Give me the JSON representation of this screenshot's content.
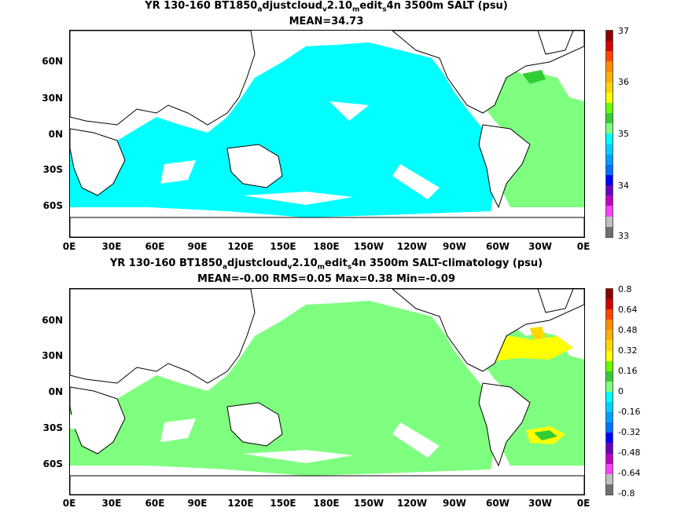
{
  "maps": [
    {
      "title_parts": [
        "YR 130-160 BT1850",
        "a",
        "djustcloud",
        "v",
        "2.10",
        "m",
        "edit",
        "s",
        "4n 3500m SALT (psu)"
      ],
      "subtitle": "MEAN=34.73",
      "colorbar_ticks": [
        "37",
        "36",
        "35",
        "34",
        "33"
      ],
      "colorbar_colors": [
        "#8b0000",
        "#d40000",
        "#ff4500",
        "#ff8c00",
        "#ffb000",
        "#ffd700",
        "#ffff00",
        "#66ff00",
        "#32cd32",
        "#7fff7f",
        "#00ffff",
        "#00d0ff",
        "#00a0ff",
        "#0070ff",
        "#0000ff",
        "#6a00c0",
        "#c000c0",
        "#ff40ff",
        "#c0c0c0",
        "#707070"
      ]
    },
    {
      "title_parts": [
        "YR 130-160 BT1850",
        "a",
        "djustcloud",
        "v",
        "2.10",
        "m",
        "edit",
        "s",
        "4n 3500m SALT-climatology (psu)"
      ],
      "subtitle": "MEAN=-0.00   RMS=0.05   Max=0.38   Min=-0.09",
      "colorbar_ticks": [
        "0.8",
        "0.64",
        "0.48",
        "0.32",
        "0.16",
        "0",
        "-0.16",
        "-0.32",
        "-0.48",
        "-0.64",
        "-0.8"
      ],
      "colorbar_colors": [
        "#8b0000",
        "#d40000",
        "#ff4500",
        "#ff8c00",
        "#ffb000",
        "#ffd700",
        "#ffff00",
        "#66ff00",
        "#32cd32",
        "#7fff7f",
        "#00ffff",
        "#00d0ff",
        "#00a0ff",
        "#0070ff",
        "#0000ff",
        "#6a00c0",
        "#c000c0",
        "#ff40ff",
        "#c0c0c0",
        "#707070"
      ]
    }
  ],
  "lat_labels": [
    "60N",
    "30N",
    "0N",
    "30S",
    "60S"
  ],
  "lon_labels": [
    "0E",
    "30E",
    "60E",
    "90E",
    "120E",
    "150E",
    "180E",
    "150W",
    "120W",
    "90W",
    "60W",
    "30W",
    "0E"
  ],
  "colors": {
    "ocean_top": "#00ffff",
    "ocean_anom": "#7fff7f",
    "atlantic_top": "#7fff7f",
    "land": "#ffffff"
  }
}
